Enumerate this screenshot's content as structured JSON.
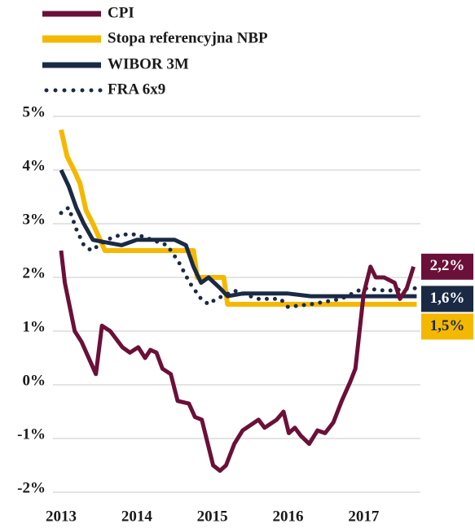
{
  "chart_data": {
    "type": "line",
    "xlim": [
      2013,
      2017.75
    ],
    "xticks": [
      2013,
      2014,
      2015,
      2016,
      2017
    ],
    "ylim": [
      -2,
      5
    ],
    "yticks": [
      {
        "value": -2,
        "label": "-2%"
      },
      {
        "value": -1,
        "label": "-1%"
      },
      {
        "value": 0,
        "label": "0%"
      },
      {
        "value": 1,
        "label": "1%"
      },
      {
        "value": 2,
        "label": "2%"
      },
      {
        "value": 3,
        "label": "3%"
      },
      {
        "value": 4,
        "label": "4%"
      },
      {
        "value": 5,
        "label": "5%"
      }
    ],
    "grid": true,
    "legend": "top-left",
    "series": [
      {
        "name": "CPI",
        "color": "#6b1038",
        "style": "solid",
        "x": [
          2013.0,
          2013.05,
          2013.18,
          2013.27,
          2013.46,
          2013.54,
          2013.65,
          2013.81,
          2013.91,
          2014.02,
          2014.11,
          2014.18,
          2014.26,
          2014.34,
          2014.45,
          2014.54,
          2014.69,
          2014.77,
          2014.86,
          2015.01,
          2015.1,
          2015.18,
          2015.29,
          2015.4,
          2015.61,
          2015.69,
          2015.85,
          2015.94,
          2016.01,
          2016.09,
          2016.17,
          2016.28,
          2016.39,
          2016.49,
          2016.6,
          2016.71,
          2016.82,
          2016.89,
          2017.0,
          2017.09,
          2017.16,
          2017.27,
          2017.41,
          2017.48,
          2017.57,
          2017.66
        ],
        "values": [
          2.5,
          1.9,
          1.0,
          0.8,
          0.2,
          1.1,
          1.0,
          0.7,
          0.6,
          0.7,
          0.5,
          0.65,
          0.6,
          0.3,
          0.2,
          -0.3,
          -0.35,
          -0.6,
          -0.65,
          -1.5,
          -1.6,
          -1.5,
          -1.1,
          -0.85,
          -0.65,
          -0.8,
          -0.65,
          -0.5,
          -0.9,
          -0.8,
          -0.95,
          -1.1,
          -0.85,
          -0.9,
          -0.7,
          -0.3,
          0.05,
          0.3,
          1.7,
          2.2,
          2.0,
          2.0,
          1.9,
          1.6,
          1.8,
          2.2
        ]
      },
      {
        "name": "Stopa referencyjna NBP",
        "color": "#f5b800",
        "style": "solid",
        "x": [
          2013.0,
          2013.08,
          2013.17,
          2013.25,
          2013.33,
          2013.42,
          2013.5,
          2013.58,
          2014.75,
          2014.8,
          2015.15,
          2015.2,
          2017.7
        ],
        "values": [
          4.75,
          4.25,
          4.0,
          3.75,
          3.25,
          3.0,
          2.75,
          2.5,
          2.5,
          2.0,
          2.0,
          1.5,
          1.5
        ]
      },
      {
        "name": "WIBOR 3M",
        "color": "#1a2a45",
        "style": "solid",
        "x": [
          2013.0,
          2013.1,
          2013.2,
          2013.3,
          2013.42,
          2013.6,
          2013.8,
          2014.0,
          2014.5,
          2014.65,
          2014.75,
          2014.85,
          2014.95,
          2015.1,
          2015.2,
          2015.4,
          2016.0,
          2016.3,
          2017.7
        ],
        "values": [
          4.0,
          3.7,
          3.3,
          3.0,
          2.7,
          2.65,
          2.6,
          2.7,
          2.7,
          2.6,
          2.2,
          1.9,
          2.0,
          1.8,
          1.65,
          1.7,
          1.7,
          1.65,
          1.65
        ]
      },
      {
        "name": "FRA 6x9",
        "color": "#1a2a45",
        "style": "dotted",
        "x": [
          2013.0,
          2013.1,
          2013.2,
          2013.3,
          2013.4,
          2013.6,
          2013.8,
          2014.0,
          2014.2,
          2014.4,
          2014.55,
          2014.7,
          2014.85,
          2014.95,
          2015.05,
          2015.3,
          2015.6,
          2015.9,
          2016.0,
          2016.3,
          2016.7,
          2017.0,
          2017.3,
          2017.7
        ],
        "values": [
          3.2,
          3.3,
          2.9,
          2.6,
          2.5,
          2.7,
          2.8,
          2.8,
          2.7,
          2.6,
          2.3,
          1.9,
          1.6,
          1.5,
          1.6,
          1.75,
          1.6,
          1.6,
          1.45,
          1.5,
          1.6,
          1.8,
          1.75,
          1.8
        ]
      }
    ],
    "annotations": [
      {
        "value": 2.2,
        "label": "2,2%",
        "color": "#6b1038",
        "text_color": "#ffffff"
      },
      {
        "value": 1.6,
        "label": "1,6%",
        "color": "#1a2a45",
        "text_color": "#ffffff"
      },
      {
        "value": 1.5,
        "label": "1,5%",
        "color": "#f5b800",
        "text_color": "#1a2a45"
      }
    ]
  }
}
